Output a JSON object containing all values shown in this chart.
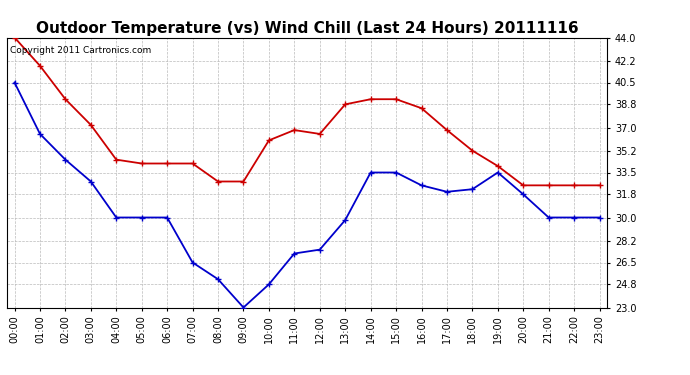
{
  "title": "Outdoor Temperature (vs) Wind Chill (Last 24 Hours) 20111116",
  "copyright": "Copyright 2011 Cartronics.com",
  "hours": [
    "00:00",
    "01:00",
    "02:00",
    "03:00",
    "04:00",
    "05:00",
    "06:00",
    "07:00",
    "08:00",
    "09:00",
    "10:00",
    "11:00",
    "12:00",
    "13:00",
    "14:00",
    "15:00",
    "16:00",
    "17:00",
    "18:00",
    "19:00",
    "20:00",
    "21:00",
    "22:00",
    "23:00"
  ],
  "temp": [
    44.0,
    41.8,
    39.2,
    37.2,
    34.5,
    34.2,
    34.2,
    34.2,
    32.8,
    32.8,
    36.0,
    36.8,
    36.5,
    38.8,
    39.2,
    39.2,
    38.5,
    36.8,
    35.2,
    34.0,
    32.5,
    32.5,
    32.5,
    32.5
  ],
  "wind_chill": [
    40.5,
    36.5,
    34.5,
    32.8,
    30.0,
    30.0,
    30.0,
    26.5,
    25.2,
    23.0,
    24.8,
    27.2,
    27.5,
    29.8,
    33.5,
    33.5,
    32.5,
    32.0,
    32.2,
    33.5,
    31.8,
    30.0,
    30.0,
    30.0
  ],
  "temp_color": "#cc0000",
  "wind_chill_color": "#0000cc",
  "bg_color": "#ffffff",
  "grid_color": "#bbbbbb",
  "ylim_min": 23.0,
  "ylim_max": 44.0,
  "yticks": [
    23.0,
    24.8,
    26.5,
    28.2,
    30.0,
    31.8,
    33.5,
    35.2,
    37.0,
    38.8,
    40.5,
    42.2,
    44.0
  ],
  "title_fontsize": 11,
  "copyright_fontsize": 6.5,
  "tick_fontsize": 7,
  "marker_size": 4
}
